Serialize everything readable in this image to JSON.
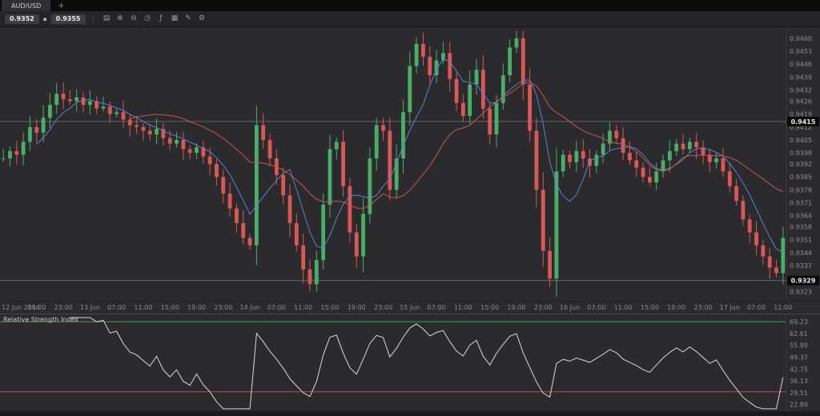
{
  "window": {
    "tab": {
      "label": "AUD/USD"
    },
    "new_tab_label": "+"
  },
  "toolbar": {
    "bid": "0.9352",
    "ask": "0.9355",
    "spread_glyph": "▪",
    "icons": [
      {
        "name": "chart-type-icon",
        "glyph": "▤"
      },
      {
        "name": "zoom-in-icon",
        "glyph": "⊕"
      },
      {
        "name": "zoom-out-icon",
        "glyph": "⊖"
      },
      {
        "name": "timeframe-icon",
        "glyph": "◷"
      },
      {
        "name": "indicators-icon",
        "glyph": "ƒ"
      },
      {
        "name": "grid-icon",
        "glyph": "▦"
      },
      {
        "name": "drawing-tools-icon",
        "glyph": "✎"
      },
      {
        "name": "settings-icon",
        "glyph": "⚙"
      }
    ]
  },
  "chart_data": {
    "type": "candlestick",
    "symbol": "AUD/USD",
    "ylim": [
      0.9466,
      0.9318
    ],
    "up_color": "#4bae68",
    "down_color": "#d95757",
    "closes": [
      0.9395,
      0.9399,
      0.9397,
      0.9404,
      0.9412,
      0.9409,
      0.9417,
      0.9424,
      0.943,
      0.9427,
      0.9426,
      0.9428,
      0.9424,
      0.9426,
      0.9422,
      0.9423,
      0.9419,
      0.942,
      0.9416,
      0.9413,
      0.9412,
      0.941,
      0.9408,
      0.9411,
      0.9406,
      0.9403,
      0.9405,
      0.94,
      0.9398,
      0.9401,
      0.9396,
      0.9392,
      0.9385,
      0.9376,
      0.9368,
      0.936,
      0.9352,
      0.9348,
      0.9413,
      0.9405,
      0.9395,
      0.9386,
      0.9375,
      0.936,
      0.9348,
      0.9335,
      0.9327,
      0.934,
      0.937,
      0.94,
      0.9404,
      0.938,
      0.9355,
      0.9342,
      0.9365,
      0.9395,
      0.9413,
      0.941,
      0.9378,
      0.9395,
      0.942,
      0.9445,
      0.9457,
      0.945,
      0.944,
      0.9448,
      0.9452,
      0.9438,
      0.9425,
      0.9418,
      0.9435,
      0.9443,
      0.9422,
      0.9408,
      0.9425,
      0.944,
      0.9455,
      0.946,
      0.9435,
      0.941,
      0.9378,
      0.9345,
      0.933,
      0.9388,
      0.9397,
      0.9393,
      0.9399,
      0.9395,
      0.9391,
      0.9397,
      0.9403,
      0.941,
      0.9406,
      0.9398,
      0.9394,
      0.939,
      0.9385,
      0.9382,
      0.9388,
      0.9394,
      0.9399,
      0.9403,
      0.94,
      0.9404,
      0.9401,
      0.9397,
      0.9393,
      0.9395,
      0.9388,
      0.938,
      0.9372,
      0.9362,
      0.9355,
      0.9348,
      0.9342,
      0.9336,
      0.9333,
      0.9352
    ],
    "levels": [
      {
        "value": 0.9415,
        "label": "0.9415"
      },
      {
        "value": 0.9329,
        "label": "0.9329"
      }
    ],
    "moving_averages": [
      {
        "name": "fast",
        "period": 6,
        "color": "#5b82c9"
      },
      {
        "name": "slow",
        "period": 20,
        "color": "#c4574f"
      }
    ],
    "price_ticks": [
      "0.9460",
      "0.9453",
      "0.9446",
      "0.9439",
      "0.9432",
      "0.9426",
      "0.9419",
      "0.9412",
      "0.9405",
      "0.9398",
      "0.9392",
      "0.9385",
      "0.9378",
      "0.9371",
      "0.9364",
      "0.9358",
      "0.9351",
      "0.9344",
      "0.9337",
      "0.9330",
      "0.9323"
    ],
    "timeframe_labels": [
      "12 Jun 2014",
      "19:00",
      "23:00",
      "13 Jun",
      "07:00",
      "11:00",
      "15:00",
      "19:00",
      "23:00",
      "14 Jun",
      "07:00",
      "11:00",
      "15:00",
      "19:00",
      "23:00",
      "15 Jun",
      "07:00",
      "11:00",
      "15:00",
      "19:00",
      "23:00",
      "16 Jun",
      "07:00",
      "11:00",
      "15:00",
      "19:00",
      "23:00",
      "17 Jun",
      "07:00",
      "11:00"
    ],
    "rsi": {
      "title": "Relative Strength Index",
      "period": 10,
      "ylim": [
        71.5,
        20.5
      ],
      "line_color": "#d9d9d9",
      "overbought": {
        "value": 69.23,
        "color": "#3f9e5a"
      },
      "oversold": {
        "value": 30.0,
        "color": "#b05050"
      },
      "ticks": [
        "69.23",
        "62.61",
        "55.99",
        "49.37",
        "42.75",
        "36.13",
        "29.51",
        "22.89"
      ]
    }
  }
}
